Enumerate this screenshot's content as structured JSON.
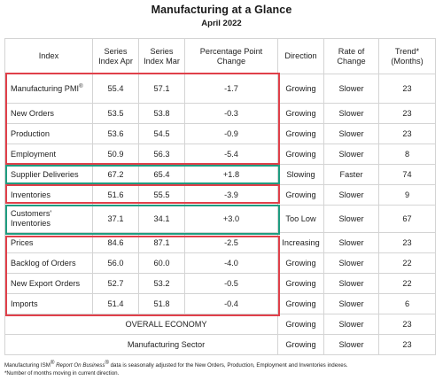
{
  "title": "Manufacturing at a Glance",
  "subtitle": "April 2022",
  "headers": {
    "index": "Index",
    "series_apr": "Series Index Apr",
    "series_mar": "Series Index Mar",
    "pp_change": "Percentage Point Change",
    "direction": "Direction",
    "rate": "Rate of Change",
    "trend": "Trend* (Months)"
  },
  "rows": [
    {
      "name": "Manufacturing PMI",
      "sup": "®",
      "apr": "55.4",
      "mar": "57.1",
      "change": "-1.7",
      "direction": "Growing",
      "rate": "Slower",
      "trend": "23"
    },
    {
      "name": "New Orders",
      "apr": "53.5",
      "mar": "53.8",
      "change": "-0.3",
      "direction": "Growing",
      "rate": "Slower",
      "trend": "23"
    },
    {
      "name": "Production",
      "apr": "53.6",
      "mar": "54.5",
      "change": "-0.9",
      "direction": "Growing",
      "rate": "Slower",
      "trend": "23"
    },
    {
      "name": "Employment",
      "apr": "50.9",
      "mar": "56.3",
      "change": "-5.4",
      "direction": "Growing",
      "rate": "Slower",
      "trend": "8"
    },
    {
      "name": "Supplier Deliveries",
      "apr": "67.2",
      "mar": "65.4",
      "change": "+1.8",
      "direction": "Slowing",
      "rate": "Faster",
      "trend": "74"
    },
    {
      "name": "Inventories",
      "apr": "51.6",
      "mar": "55.5",
      "change": "-3.9",
      "direction": "Growing",
      "rate": "Slower",
      "trend": "9"
    },
    {
      "name": "Customers' Inventories",
      "apr": "37.1",
      "mar": "34.1",
      "change": "+3.0",
      "direction": "Too Low",
      "rate": "Slower",
      "trend": "67"
    },
    {
      "name": "Prices",
      "apr": "84.6",
      "mar": "87.1",
      "change": "-2.5",
      "direction": "Increasing",
      "rate": "Slower",
      "trend": "23"
    },
    {
      "name": "Backlog of Orders",
      "apr": "56.0",
      "mar": "60.0",
      "change": "-4.0",
      "direction": "Growing",
      "rate": "Slower",
      "trend": "22"
    },
    {
      "name": "New Export Orders",
      "apr": "52.7",
      "mar": "53.2",
      "change": "-0.5",
      "direction": "Growing",
      "rate": "Slower",
      "trend": "22"
    },
    {
      "name": "Imports",
      "apr": "51.4",
      "mar": "51.8",
      "change": "-0.4",
      "direction": "Growing",
      "rate": "Slower",
      "trend": "6"
    }
  ],
  "summary": [
    {
      "label": "OVERALL ECONOMY",
      "direction": "Growing",
      "rate": "Slower",
      "trend": "23"
    },
    {
      "label": "Manufacturing Sector",
      "direction": "Growing",
      "rate": "Slower",
      "trend": "23"
    }
  ],
  "footnote": {
    "line1_a": "Manufacturing ISM",
    "line1_sup1": "®",
    "line1_b": " Report On Business",
    "line1_sup2": "®",
    "line1_c": " data is seasonally adjusted for the New Orders, Production, Employment and Inventories indexes.",
    "line2": "*Number of months moving in current direction."
  },
  "colors": {
    "red_box": "#e0404a",
    "teal_box": "#1f9c80"
  }
}
